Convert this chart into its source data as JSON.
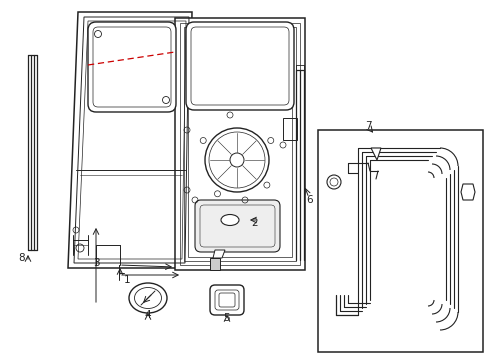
{
  "bg_color": "#ffffff",
  "line_color": "#222222",
  "red_dashed_color": "#cc0000",
  "label_color": "#000000",
  "fig_width": 4.89,
  "fig_height": 3.6,
  "dpi": 100
}
